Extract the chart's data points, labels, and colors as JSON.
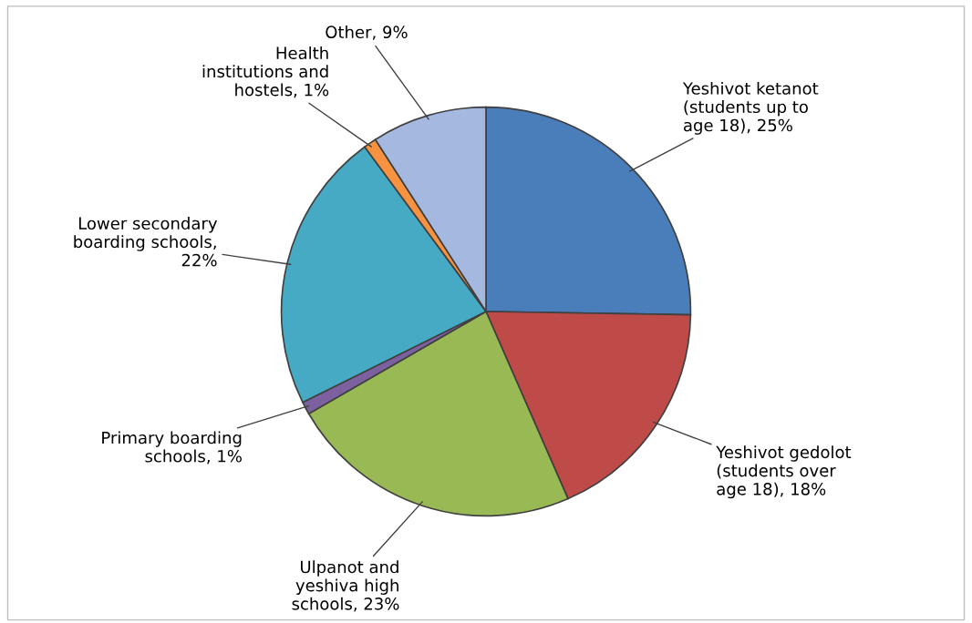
{
  "chart_data": {
    "type": "pie",
    "categories": [
      "Yeshivot ketanot (students up to age 18), 25%",
      "Yeshivot gedolot (students over age 18), 18%",
      "Ulpanot and yeshiva high schools, 23%",
      "Primary boarding schools, 1%",
      "Lower secondary boarding schools, 22%",
      "Health institutions and hostels, 1%",
      "Other, 9%"
    ],
    "values": [
      25,
      18,
      23,
      1,
      22,
      1,
      9
    ],
    "colors": [
      "#4a7ebb",
      "#be4b48",
      "#98b954",
      "#7d60a0",
      "#46aac5",
      "#f69240",
      "#a5b9e0"
    ]
  }
}
